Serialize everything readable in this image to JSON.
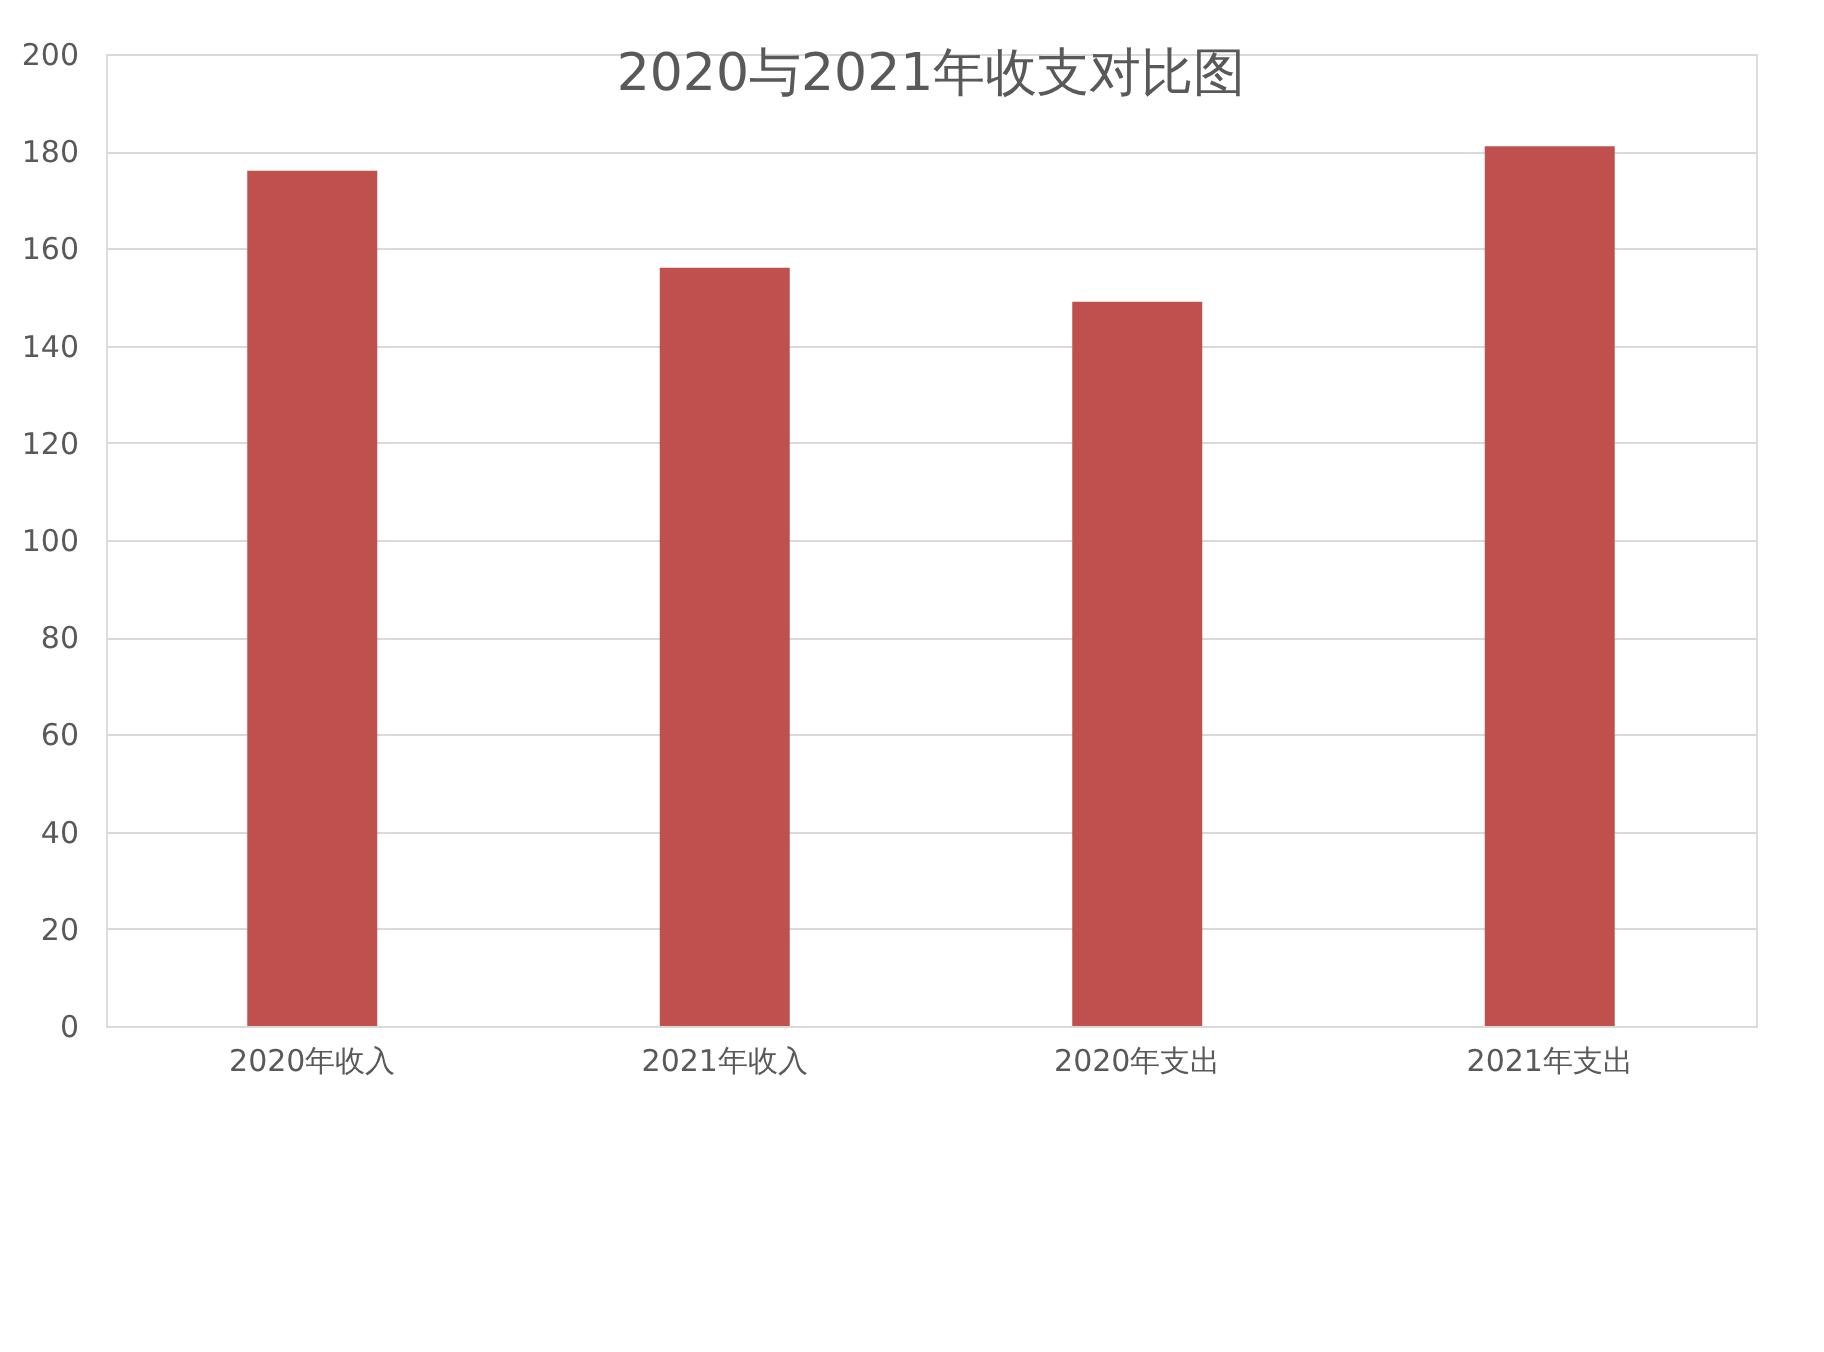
{
  "chart_data": {
    "type": "bar",
    "title": "2020与2021年收支对比图",
    "categories": [
      "2020年收入",
      "2021年收入",
      "2020年支出",
      "2021年支出"
    ],
    "values": [
      176,
      156,
      149,
      181
    ],
    "color": "#c0504d",
    "ylim": [
      0,
      200
    ],
    "yticks": [
      0,
      20,
      40,
      60,
      80,
      100,
      120,
      140,
      160,
      180,
      200
    ],
    "grid": "y"
  }
}
